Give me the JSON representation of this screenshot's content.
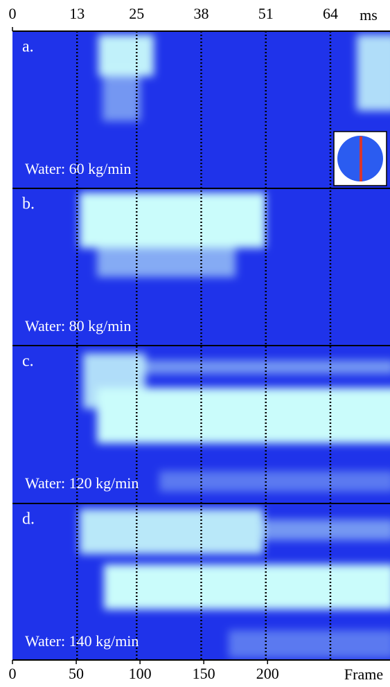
{
  "top_axis": {
    "unit": "ms",
    "xlim": [
      0,
      76
    ],
    "ticks": [
      0,
      13,
      25,
      38,
      51,
      64
    ]
  },
  "bottom_axis": {
    "unit": "Frame",
    "xlim": [
      0,
      296
    ],
    "ticks": [
      0,
      50,
      100,
      150,
      200
    ]
  },
  "panels": [
    {
      "label": "a.",
      "caption": "Water: 60 kg/min"
    },
    {
      "label": "b.",
      "caption": "Water: 80 kg/min"
    },
    {
      "label": "c.",
      "caption": "Water: 120 kg/min"
    },
    {
      "label": "d.",
      "caption": "Water: 140 kg/min"
    }
  ]
}
